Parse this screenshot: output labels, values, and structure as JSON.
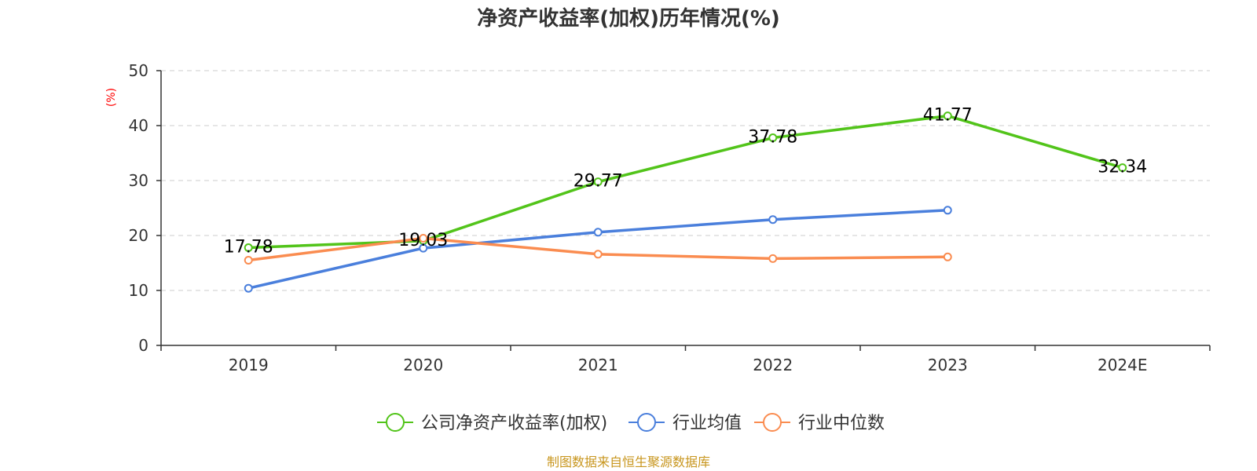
{
  "chart_data": {
    "type": "line",
    "title": "净资产收益率(加权)历年情况(%)",
    "ylabel": "(%)",
    "xlabel": "",
    "categories": [
      "2019",
      "2020",
      "2021",
      "2022",
      "2023",
      "2024E"
    ],
    "ylim": [
      0,
      50
    ],
    "yticks": [
      0,
      10,
      20,
      30,
      40,
      50
    ],
    "grid": true,
    "legend_position": "bottom",
    "series": [
      {
        "name": "公司净资产收益率(加权)",
        "color": "#52c41a",
        "values": [
          17.78,
          19.03,
          29.77,
          37.78,
          41.77,
          32.34
        ],
        "labels": [
          "17.78",
          "19.03",
          "29.77",
          "37.78",
          "41.77",
          "32.34"
        ]
      },
      {
        "name": "行业均值",
        "color": "#4a7fdc",
        "values": [
          10.4,
          17.7,
          20.6,
          22.9,
          24.6,
          null
        ]
      },
      {
        "name": "行业中位数",
        "color": "#fa8c50",
        "values": [
          15.5,
          19.5,
          16.6,
          15.8,
          16.1,
          null
        ]
      }
    ],
    "source": "制图数据来自恒生聚源数据库",
    "colors": {
      "ylabel": "#ff0000",
      "source": "#c8961e",
      "axis": "#333333",
      "grid": "#cccccc"
    }
  }
}
